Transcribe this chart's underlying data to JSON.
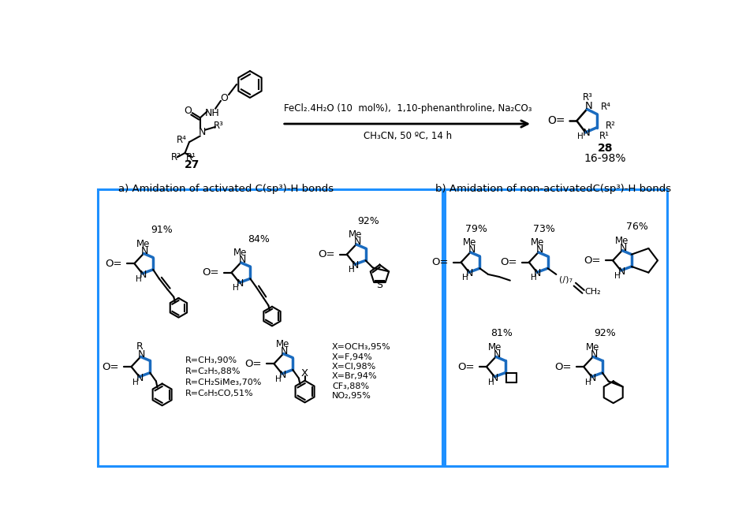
{
  "title_top": "FeCl₂.4H₂O (10  mol%),  1,10-phenanthroline, Na₂CO₃",
  "title_bottom": "CH₃CN, 50 ºC, 14 h",
  "yield_top": "16-98%",
  "label_27": "27",
  "label_28": "28",
  "section_a": "a) Amidation of activated C(sp³)-H bonds",
  "section_b": "b) Amidation of non-activatedC(sp³)-H bonds",
  "box_color": "#1e90ff",
  "bond_color_blue": "#1a6bbf",
  "bond_color_black": "#000000",
  "bg_color": "#ffffff"
}
